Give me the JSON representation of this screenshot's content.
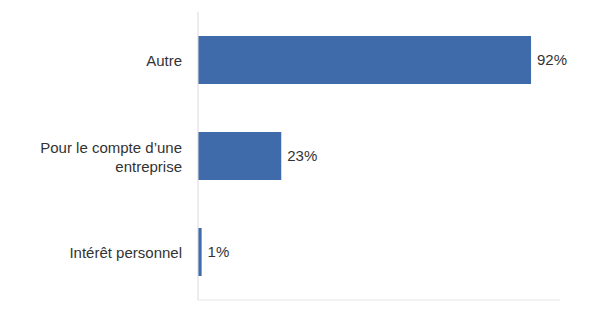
{
  "chart_data": {
    "type": "bar",
    "orientation": "horizontal",
    "categories": [
      "Autre",
      "Pour le compte d’une entreprise",
      "Intérêt personnel"
    ],
    "values": [
      92,
      23,
      1
    ],
    "value_labels": [
      "92%",
      "23%",
      "1%"
    ],
    "data_labels": true,
    "color": "#3f6baa",
    "xlim": [
      0,
      100
    ],
    "tick_labels": "y",
    "grid": false
  }
}
